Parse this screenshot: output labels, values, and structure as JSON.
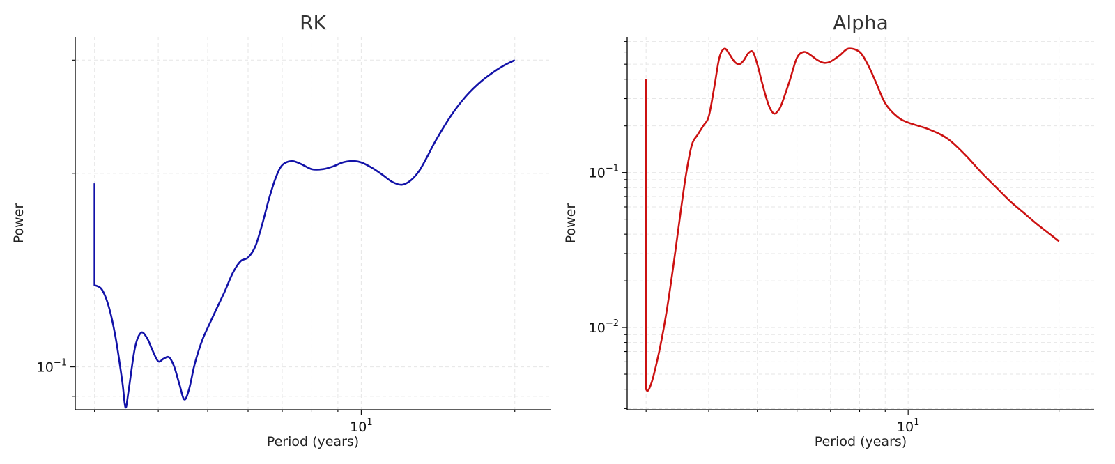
{
  "chart_data": [
    {
      "type": "line",
      "title": "RK",
      "xlabel": "Period (years)",
      "ylabel": "Power",
      "xscale": "log",
      "yscale": "log",
      "xlim": [
        2.75,
        23.5
      ],
      "ylim": [
        0.0858,
        0.326
      ],
      "xticks": [
        {
          "value": 10,
          "base": "10",
          "exp": "1"
        }
      ],
      "yticks": [
        {
          "value": 0.1,
          "base": "10",
          "exp": "−1"
        }
      ],
      "grid": true,
      "color": "#1212a8",
      "series": [
        {
          "x": [
            3.0,
            3.0,
            3.0,
            3.1,
            3.2,
            3.3,
            3.4,
            3.45,
            3.5,
            3.6,
            3.7,
            3.8,
            3.9,
            4.0,
            4.1,
            4.2,
            4.3,
            4.4,
            4.5,
            4.6,
            4.7,
            4.8,
            4.9,
            5.0,
            5.2,
            5.4,
            5.6,
            5.8,
            6.0,
            6.2,
            6.4,
            6.6,
            6.8,
            7.0,
            7.3,
            7.6,
            8.0,
            8.4,
            8.8,
            9.2,
            9.6,
            10.0,
            10.5,
            11.0,
            11.5,
            12.0,
            12.5,
            13.0,
            13.5,
            14.0,
            15.0,
            16.0,
            17.0,
            18.0,
            19.0,
            20.0
          ],
          "y": [
            0.193,
            0.153,
            0.134,
            0.132,
            0.124,
            0.111,
            0.095,
            0.0865,
            0.092,
            0.107,
            0.113,
            0.111,
            0.106,
            0.102,
            0.103,
            0.1035,
            0.1,
            0.094,
            0.089,
            0.0925,
            0.1,
            0.106,
            0.111,
            0.115,
            0.123,
            0.131,
            0.14,
            0.146,
            0.148,
            0.154,
            0.167,
            0.183,
            0.197,
            0.206,
            0.209,
            0.207,
            0.203,
            0.203,
            0.205,
            0.208,
            0.209,
            0.208,
            0.204,
            0.199,
            0.194,
            0.192,
            0.195,
            0.202,
            0.213,
            0.225,
            0.246,
            0.263,
            0.276,
            0.286,
            0.294,
            0.3
          ]
        }
      ]
    },
    {
      "type": "line",
      "title": "Alpha",
      "xlabel": "Period (years)",
      "ylabel": "Power",
      "xscale": "log",
      "yscale": "log",
      "xlim": [
        2.75,
        23.5
      ],
      "ylim": [
        0.00295,
        0.75
      ],
      "xticks": [
        {
          "value": 10,
          "base": "10",
          "exp": "1"
        }
      ],
      "yticks": [
        {
          "value": 0.1,
          "base": "10",
          "exp": "−1"
        },
        {
          "value": 0.01,
          "base": "10",
          "exp": "−2"
        }
      ],
      "grid": true,
      "color": "#cc1111",
      "series": [
        {
          "x": [
            3.0,
            3.0,
            3.02,
            3.05,
            3.1,
            3.2,
            3.3,
            3.4,
            3.5,
            3.6,
            3.7,
            3.8,
            3.9,
            4.0,
            4.1,
            4.2,
            4.3,
            4.4,
            4.5,
            4.6,
            4.7,
            4.8,
            4.9,
            5.0,
            5.1,
            5.2,
            5.3,
            5.4,
            5.5,
            5.6,
            5.8,
            6.0,
            6.2,
            6.4,
            6.6,
            6.8,
            7.0,
            7.3,
            7.6,
            8.0,
            8.3,
            8.6,
            9.0,
            9.5,
            10.0,
            11.0,
            12.0,
            13.0,
            14.0,
            15.0,
            16.0,
            17.0,
            18.0,
            19.0,
            20.0
          ],
          "y": [
            0.4,
            0.004,
            0.0039,
            0.0041,
            0.0048,
            0.0075,
            0.013,
            0.025,
            0.05,
            0.095,
            0.15,
            0.175,
            0.2,
            0.23,
            0.35,
            0.55,
            0.63,
            0.58,
            0.52,
            0.5,
            0.53,
            0.59,
            0.6,
            0.5,
            0.39,
            0.31,
            0.26,
            0.24,
            0.25,
            0.28,
            0.39,
            0.55,
            0.6,
            0.57,
            0.53,
            0.51,
            0.52,
            0.57,
            0.63,
            0.6,
            0.5,
            0.39,
            0.28,
            0.23,
            0.21,
            0.19,
            0.165,
            0.13,
            0.1,
            0.08,
            0.065,
            0.055,
            0.047,
            0.041,
            0.036
          ]
        }
      ]
    }
  ]
}
